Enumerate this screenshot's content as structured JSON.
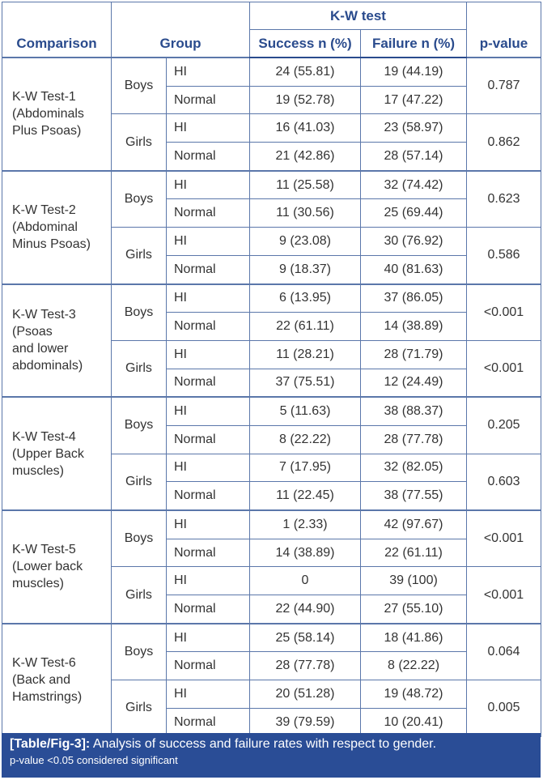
{
  "table": {
    "headers": {
      "comparison": "Comparison",
      "group": "Group",
      "kw_test": "K-W test",
      "success": "Success n (%)",
      "failure": "Failure n (%)",
      "p_value": "p-value"
    },
    "tests": [
      {
        "name": [
          "K-W Test-1",
          "(Abdominals",
          "Plus Psoas)"
        ],
        "genders": [
          {
            "gender": "Boys",
            "p": "0.787",
            "rows": [
              [
                "HI",
                "24 (55.81)",
                "19 (44.19)"
              ],
              [
                "Normal",
                "19 (52.78)",
                "17 (47.22)"
              ]
            ]
          },
          {
            "gender": "Girls",
            "p": "0.862",
            "rows": [
              [
                "HI",
                "16 (41.03)",
                "23 (58.97)"
              ],
              [
                "Normal",
                "21 (42.86)",
                "28 (57.14)"
              ]
            ]
          }
        ]
      },
      {
        "name": [
          "K-W Test-2",
          "(Abdominal",
          "Minus Psoas)"
        ],
        "genders": [
          {
            "gender": "Boys",
            "p": "0.623",
            "rows": [
              [
                "HI",
                "11 (25.58)",
                "32 (74.42)"
              ],
              [
                "Normal",
                "11 (30.56)",
                "25 (69.44)"
              ]
            ]
          },
          {
            "gender": "Girls",
            "p": "0.586",
            "rows": [
              [
                "HI",
                "9 (23.08)",
                "30 (76.92)"
              ],
              [
                "Normal",
                "9 (18.37)",
                "40 (81.63)"
              ]
            ]
          }
        ]
      },
      {
        "name": [
          "K-W Test-3",
          "(Psoas",
          "and lower",
          "abdominals)"
        ],
        "genders": [
          {
            "gender": "Boys",
            "p": "<0.001",
            "rows": [
              [
                "HI",
                "6 (13.95)",
                "37 (86.05)"
              ],
              [
                "Normal",
                "22 (61.11)",
                "14 (38.89)"
              ]
            ]
          },
          {
            "gender": "Girls",
            "p": "<0.001",
            "rows": [
              [
                "HI",
                "11 (28.21)",
                "28 (71.79)"
              ],
              [
                "Normal",
                "37 (75.51)",
                "12 (24.49)"
              ]
            ]
          }
        ]
      },
      {
        "name": [
          "K-W Test-4",
          "(Upper Back",
          "muscles)"
        ],
        "genders": [
          {
            "gender": "Boys",
            "p": "0.205",
            "rows": [
              [
                "HI",
                "5 (11.63)",
                "38 (88.37)"
              ],
              [
                "Normal",
                "8 (22.22)",
                "28 (77.78)"
              ]
            ]
          },
          {
            "gender": "Girls",
            "p": "0.603",
            "rows": [
              [
                "HI",
                "7 (17.95)",
                "32 (82.05)"
              ],
              [
                "Normal",
                "11 (22.45)",
                "38 (77.55)"
              ]
            ]
          }
        ]
      },
      {
        "name": [
          "K-W Test-5",
          "(Lower back",
          "muscles)"
        ],
        "genders": [
          {
            "gender": "Boys",
            "p": "<0.001",
            "rows": [
              [
                "HI",
                "1 (2.33)",
                "42 (97.67)"
              ],
              [
                "Normal",
                "14 (38.89)",
                "22 (61.11)"
              ]
            ]
          },
          {
            "gender": "Girls",
            "p": "<0.001",
            "rows": [
              [
                "HI",
                "0",
                "39 (100)"
              ],
              [
                "Normal",
                "22 (44.90)",
                "27 (55.10)"
              ]
            ]
          }
        ]
      },
      {
        "name": [
          "K-W Test-6",
          "(Back and",
          "Hamstrings)"
        ],
        "genders": [
          {
            "gender": "Boys",
            "p": "0.064",
            "rows": [
              [
                "HI",
                "25 (58.14)",
                "18 (41.86)"
              ],
              [
                "Normal",
                "28 (77.78)",
                "8 (22.22)"
              ]
            ]
          },
          {
            "gender": "Girls",
            "p": "0.005",
            "rows": [
              [
                "HI",
                "20 (51.28)",
                "19 (48.72)"
              ],
              [
                "Normal",
                "39 (79.59)",
                "10 (20.41)"
              ]
            ]
          }
        ]
      }
    ]
  },
  "caption": {
    "label": "[Table/Fig-3]:",
    "text": " Analysis of success and failure rates with respect to gender.",
    "note": "p-value <0.05 considered significant"
  },
  "colors": {
    "header_text": "#2a4b8d",
    "caption_bg": "#2a4d96",
    "border": "#5b77aa"
  }
}
